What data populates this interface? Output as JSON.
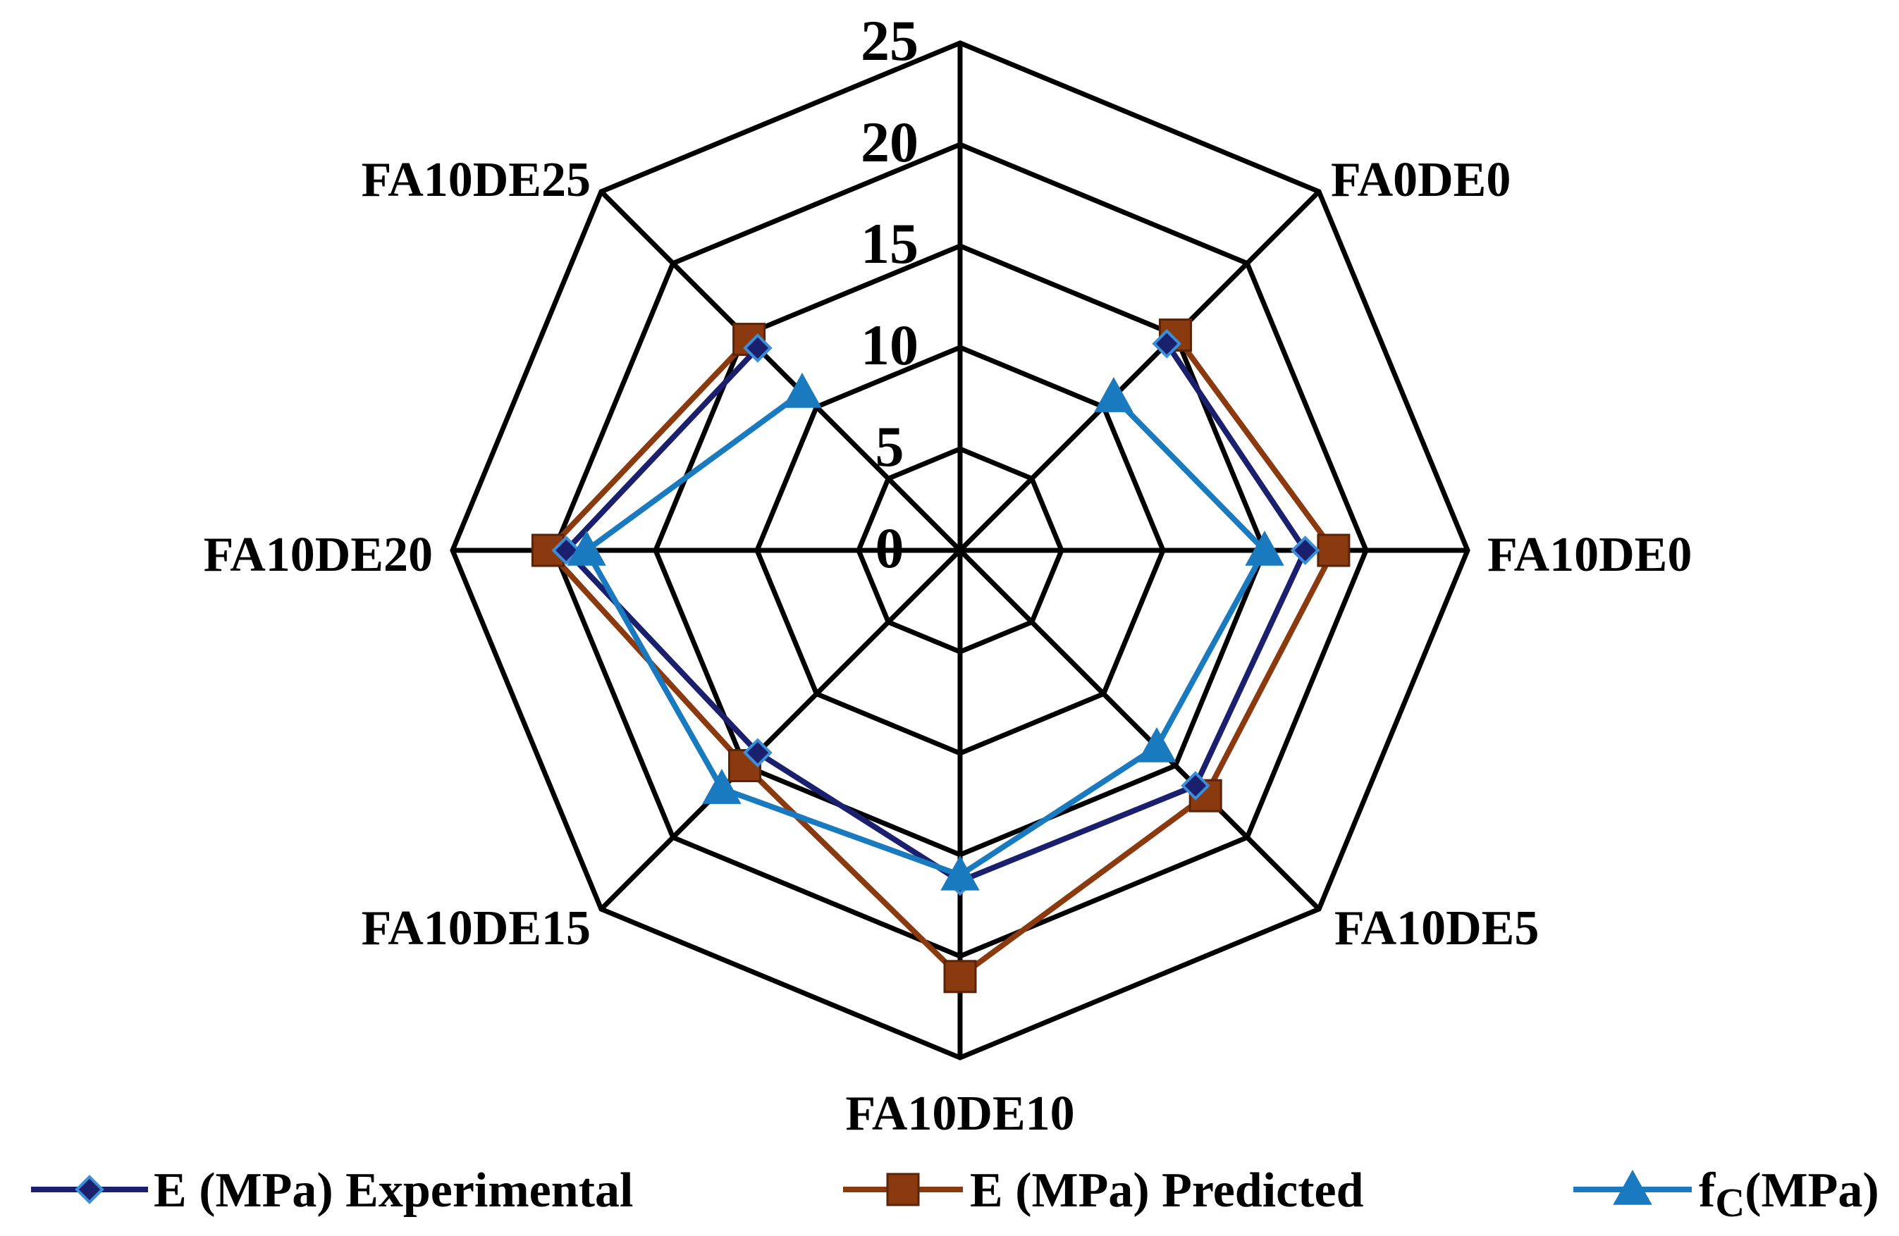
{
  "chart_data": {
    "type": "radar",
    "title": "",
    "categories": [
      "FA0DE0",
      "FA10DE0",
      "FA10DE5",
      "FA10DE10",
      "FA10DE15",
      "FA10DE20",
      "FA10DE25"
    ],
    "axis_range": [
      0,
      25
    ],
    "ticks": [
      "0",
      "5",
      "10",
      "15",
      "20",
      "25"
    ],
    "grid": true,
    "legend_position": "bottom",
    "series": [
      {
        "name": "E (MPa) Experimental",
        "color": "#1a1f6e",
        "marker": "diamond",
        "values": [
          14.4,
          17.0,
          16.4,
          16.3,
          14.1,
          19.4,
          14.1
        ]
      },
      {
        "name": "E (MPa) Predicted",
        "color": "#8b3a0f",
        "marker": "square",
        "values": [
          15.0,
          18.4,
          17.1,
          21.0,
          15.0,
          20.3,
          14.7
        ]
      },
      {
        "name": "f_C(MPa)",
        "label_main": "f",
        "label_sub": "C",
        "label_rest": "(MPa)",
        "color": "#1a7abf",
        "marker": "triangle",
        "values": [
          10.7,
          15.0,
          13.7,
          16.0,
          16.6,
          18.4,
          11.0
        ]
      }
    ]
  }
}
